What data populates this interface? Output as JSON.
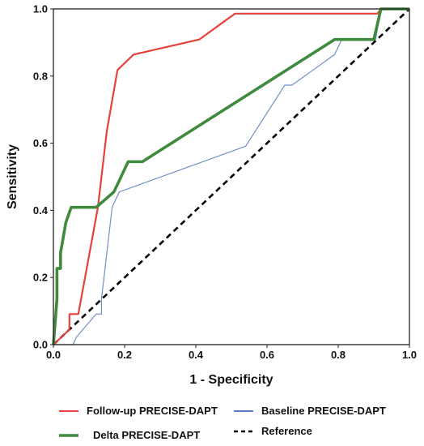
{
  "chart_data": {
    "type": "line",
    "title": "",
    "xlabel": "1 - Specificity",
    "ylabel": "Sensitivity",
    "xlim": [
      0,
      1
    ],
    "ylim": [
      0,
      1
    ],
    "x_ticks": [
      "0.0",
      "0.2",
      "0.4",
      "0.6",
      "0.8",
      "1.0"
    ],
    "y_ticks": [
      "0.0",
      "0.2",
      "0.4",
      "0.6",
      "0.8",
      "1.0"
    ],
    "grid": false,
    "legend_position": "bottom",
    "series": [
      {
        "name": "Follow-up PRECISE-DAPT",
        "color": "#e8413c",
        "style": "solid",
        "x": [
          0.0,
          0.045,
          0.045,
          0.07,
          0.07,
          0.125,
          0.15,
          0.18,
          0.225,
          0.41,
          0.51,
          0.91,
          0.92,
          1.0
        ],
        "y": [
          0.0,
          0.045,
          0.091,
          0.091,
          0.091,
          0.409,
          0.636,
          0.818,
          0.864,
          0.909,
          0.986,
          0.986,
          1.0,
          1.0
        ]
      },
      {
        "name": "Baseline PRECISE-DAPT",
        "color": "#5a7abf",
        "style": "solid",
        "x": [
          0.0,
          0.055,
          0.065,
          0.12,
          0.135,
          0.135,
          0.165,
          0.185,
          0.54,
          0.65,
          0.67,
          0.79,
          0.81,
          0.905,
          0.92,
          1.0
        ],
        "y": [
          0.0,
          0.0,
          0.023,
          0.091,
          0.091,
          0.136,
          0.409,
          0.455,
          0.591,
          0.773,
          0.773,
          0.864,
          0.909,
          0.909,
          1.0,
          1.0
        ]
      },
      {
        "name": "Delta PRECISE-DAPT",
        "color": "#3f8a3c",
        "style": "solid",
        "x": [
          0.0,
          0.01,
          0.01,
          0.02,
          0.02,
          0.035,
          0.05,
          0.12,
          0.17,
          0.21,
          0.25,
          0.79,
          0.9,
          0.92,
          1.0
        ],
        "y": [
          0.0,
          0.136,
          0.227,
          0.227,
          0.273,
          0.364,
          0.409,
          0.409,
          0.455,
          0.545,
          0.545,
          0.909,
          0.909,
          1.0,
          1.0
        ]
      },
      {
        "name": "Reference",
        "color": "#000000",
        "style": "dashed",
        "x": [
          0.0,
          1.0
        ],
        "y": [
          0.0,
          1.0
        ]
      }
    ]
  }
}
